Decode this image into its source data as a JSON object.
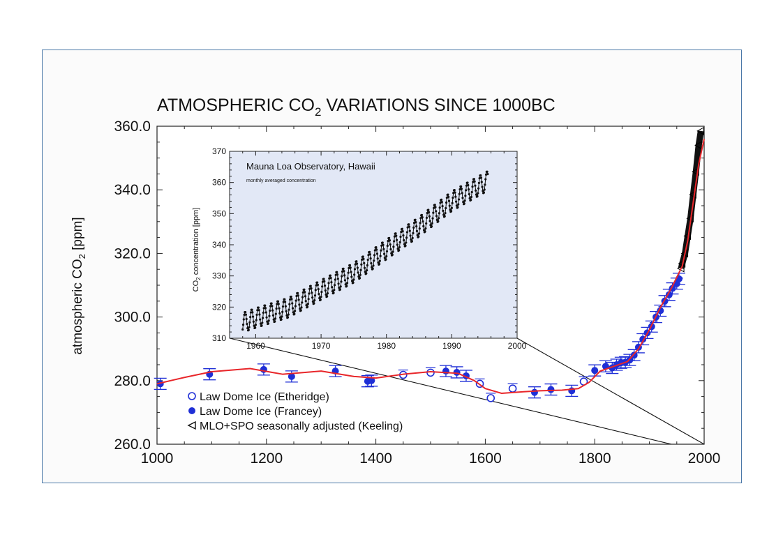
{
  "chart_data": [
    {
      "type": "scatter",
      "title": "ATMOSPHERIC CO",
      "title_sub": "2",
      "title_suffix": " VARIATIONS SINCE 1000BC",
      "ylabel": "atmospheric CO",
      "ylabel_sub": "2",
      "ylabel_suffix": " [ppm]",
      "xlim": [
        1000,
        2000
      ],
      "ylim": [
        260,
        360
      ],
      "x_ticks": [
        1000,
        1200,
        1400,
        1600,
        1800,
        2000
      ],
      "x_tick_labels": [
        "1000",
        "1200",
        "1400",
        "1600",
        "1800",
        "2000"
      ],
      "y_ticks": [
        260,
        280,
        300,
        320,
        340,
        360
      ],
      "y_tick_labels": [
        "260.0",
        "280.0",
        "300.0",
        "320.0",
        "340.0",
        "360.0"
      ],
      "legend_position": "bottom-left",
      "colors": {
        "ice": "#1f2fd6",
        "fit": "#e8262a",
        "keeling": "#111111",
        "frame": "#4a78a8",
        "inset_bg": "#e2e8f6"
      },
      "series": [
        {
          "name": "Law Dome Ice (Etheridge)",
          "marker": "open-circle",
          "x": [
            1450,
            1500,
            1590,
            1610,
            1650,
            1780
          ],
          "y": [
            281.8,
            282.5,
            279.0,
            274.5,
            277.5,
            279.7
          ]
        },
        {
          "name": "Law Dome Ice (Francey)",
          "marker": "filled-circle",
          "x": [
            1006,
            1096,
            1195,
            1246,
            1326,
            1385,
            1392,
            1528,
            1548,
            1565,
            1690,
            1720,
            1758,
            1800,
            1820,
            1832,
            1840,
            1848,
            1856,
            1864,
            1872,
            1880,
            1888,
            1896,
            1904,
            1912,
            1920,
            1928,
            1936,
            1942,
            1950,
            1954
          ],
          "y": [
            279.0,
            282.0,
            283.5,
            281.3,
            283.0,
            279.8,
            280.0,
            283.0,
            282.6,
            281.5,
            276.3,
            277.2,
            276.8,
            283.2,
            284.5,
            284.0,
            285.0,
            285.6,
            285.8,
            286.5,
            288.0,
            290.5,
            293.0,
            295.0,
            297.0,
            300.0,
            302.0,
            305.0,
            307.0,
            309.0,
            310.5,
            312.0
          ]
        },
        {
          "name": "MLO+SPO seasonally adjusted (Keeling)",
          "marker": "open-triangle",
          "x": [
            1958,
            1960,
            1965,
            1970,
            1975,
            1980,
            1985,
            1990,
            1994
          ],
          "y": [
            315.3,
            316.8,
            320.0,
            325.5,
            331.0,
            338.5,
            345.7,
            354.0,
            358.5
          ]
        },
        {
          "name": "",
          "marker": "line",
          "x": [
            1000,
            1050,
            1100,
            1170,
            1230,
            1300,
            1360,
            1400,
            1450,
            1500,
            1550,
            1580,
            1600,
            1630,
            1670,
            1700,
            1740,
            1770,
            1790,
            1810,
            1840,
            1860,
            1880,
            1900,
            1920,
            1940,
            1960,
            1970,
            1980,
            1990,
            2000
          ],
          "y": [
            279.0,
            281.0,
            282.8,
            283.8,
            282.0,
            283.0,
            281.3,
            280.8,
            282.0,
            282.8,
            282.3,
            280.0,
            277.5,
            276.0,
            276.5,
            276.8,
            277.0,
            277.5,
            279.5,
            283.0,
            284.8,
            286.0,
            290.0,
            296.0,
            303.0,
            309.0,
            316.0,
            324.0,
            336.0,
            348.0,
            356.0
          ]
        }
      ]
    },
    {
      "type": "line",
      "title": "Mauna Loa Observatory, Hawaii",
      "subtitle": "monthly averaged concentration",
      "ylabel": "CO",
      "ylabel_sub": "2",
      "ylabel_suffix": " concentration [ppm]",
      "xlim": [
        1956,
        2000
      ],
      "ylim": [
        310,
        370
      ],
      "x_ticks": [
        1960,
        1970,
        1980,
        1990,
        2000
      ],
      "x_tick_labels": [
        "1960",
        "1970",
        "1980",
        "1990",
        "2000"
      ],
      "y_ticks": [
        310,
        320,
        330,
        340,
        350,
        360,
        370
      ],
      "y_tick_labels": [
        "310",
        "320",
        "330",
        "340",
        "350",
        "360",
        "370"
      ],
      "seasonal_amplitude_ppm": 3.2,
      "series": [
        {
          "name": "",
          "x": [
            1958,
            1960,
            1965,
            1970,
            1975,
            1980,
            1985,
            1990,
            1995.5
          ],
          "y": [
            315.0,
            316.5,
            319.8,
            325.5,
            331.0,
            338.5,
            345.8,
            354.0,
            360.5
          ]
        }
      ]
    }
  ]
}
